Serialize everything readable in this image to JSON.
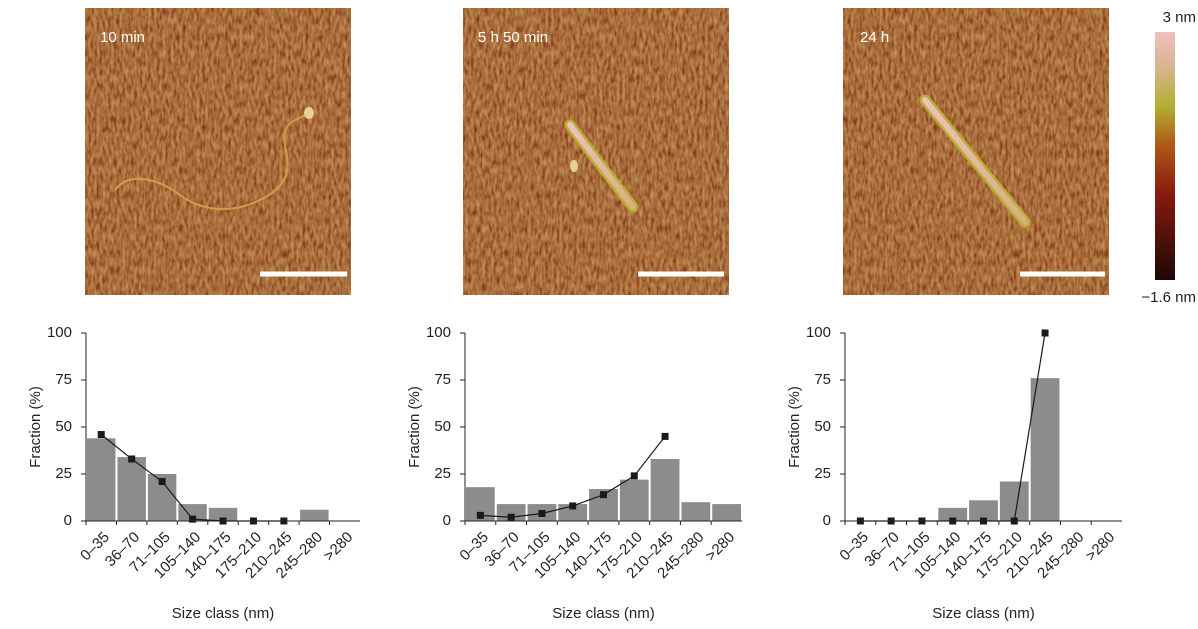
{
  "images": [
    {
      "label": "10 min"
    },
    {
      "label": "5 h 50 min"
    },
    {
      "label": "24 h"
    }
  ],
  "colorbar": {
    "max_label": "3 nm",
    "min_label": "−1.6 nm"
  },
  "chart_data": [
    {
      "type": "bar",
      "xlabel": "Size class (nm)",
      "ylabel": "Fraction (%)",
      "categories": [
        "0–35",
        "36–70",
        "71–105",
        "105–140",
        "140–175",
        "175–210",
        "210–245",
        "245–280",
        ">280"
      ],
      "series": [
        {
          "type": "bar",
          "color": "#8c8c8c",
          "values": [
            44,
            34,
            25,
            9,
            7,
            0,
            0,
            6,
            0
          ]
        },
        {
          "type": "line",
          "color": "#1a1a1a",
          "values": [
            46,
            33,
            21,
            1,
            0,
            0,
            0,
            null,
            null
          ]
        }
      ],
      "ylim": [
        0,
        100
      ],
      "yticks": [
        0,
        25,
        50,
        75,
        100
      ],
      "grid": false
    },
    {
      "type": "bar",
      "xlabel": "Size class (nm)",
      "ylabel": "Fraction (%)",
      "categories": [
        "0–35",
        "36–70",
        "71–105",
        "105–140",
        "140–175",
        "175–210",
        "210–245",
        "245–280",
        ">280"
      ],
      "series": [
        {
          "type": "bar",
          "color": "#8c8c8c",
          "values": [
            18,
            9,
            9,
            9,
            17,
            22,
            33,
            10,
            9
          ]
        },
        {
          "type": "line",
          "color": "#1a1a1a",
          "values": [
            3,
            2,
            4,
            8,
            14,
            24,
            45,
            null,
            null
          ]
        }
      ],
      "ylim": [
        0,
        100
      ],
      "yticks": [
        0,
        25,
        50,
        75,
        100
      ],
      "grid": false
    },
    {
      "type": "bar",
      "xlabel": "Size class (nm)",
      "ylabel": "Fraction (%)",
      "categories": [
        "0–35",
        "36–70",
        "71–105",
        "105–140",
        "140–175",
        "175–210",
        "210–245",
        "245–280",
        ">280"
      ],
      "series": [
        {
          "type": "bar",
          "color": "#8c8c8c",
          "values": [
            0,
            0,
            0,
            7,
            11,
            21,
            76,
            0,
            0
          ]
        },
        {
          "type": "line",
          "color": "#1a1a1a",
          "values": [
            0,
            0,
            0,
            0,
            0,
            0,
            100,
            null,
            null
          ]
        }
      ],
      "ylim": [
        0,
        100
      ],
      "yticks": [
        0,
        25,
        50,
        75,
        100
      ],
      "grid": false
    }
  ]
}
